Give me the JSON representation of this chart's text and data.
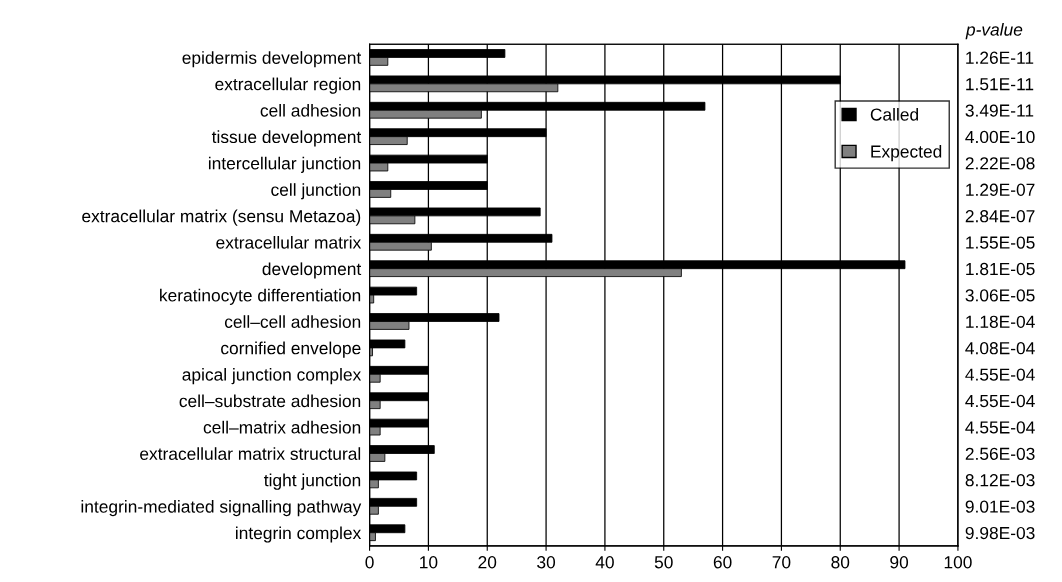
{
  "chart_data": {
    "type": "bar",
    "orientation": "horizontal",
    "categories": [
      "epidermis development",
      "extracellular region",
      "cell adhesion",
      "tissue development",
      "intercellular junction",
      "cell junction",
      "extracellular matrix (sensu Metazoa)",
      "extracellular matrix",
      "development",
      "keratinocyte differentiation",
      "cell–cell adhesion",
      "cornified envelope",
      "apical junction complex",
      "cell–substrate adhesion",
      "cell–matrix adhesion",
      "extracellular matrix structural",
      "tight junction",
      "integrin-mediated signalling pathway",
      "integrin complex"
    ],
    "y2_categories": [
      "1.26E-11",
      "1.51E-11",
      "3.49E-11",
      "4.00E-10",
      "2.22E-08",
      "1.29E-07",
      "2.84E-07",
      "1.55E-05",
      "1.81E-05",
      "3.06E-05",
      "1.18E-04",
      "4.08E-04",
      "4.55E-04",
      "4.55E-04",
      "4.55E-04",
      "2.56E-03",
      "8.12E-03",
      "9.01E-03",
      "9.98E-03"
    ],
    "y2label": "p-value",
    "series": [
      {
        "name": "Called",
        "color": "#000000",
        "values": [
          23,
          80,
          57,
          30,
          20,
          20,
          29,
          31,
          91,
          8,
          22,
          6,
          10,
          10,
          10,
          11,
          8,
          8,
          6
        ]
      },
      {
        "name": "Expected",
        "color": "#808080",
        "values": [
          3.1,
          32,
          19,
          6.4,
          3.1,
          3.6,
          7.7,
          10.5,
          53,
          0.7,
          6.7,
          0.5,
          1.8,
          1.8,
          1.8,
          2.6,
          1.5,
          1.5,
          1.0
        ]
      }
    ],
    "xlim": [
      0,
      100
    ],
    "xticks": [
      0,
      10,
      20,
      30,
      40,
      50,
      60,
      70,
      80,
      90,
      100
    ],
    "grid": "x",
    "legend": "right"
  }
}
